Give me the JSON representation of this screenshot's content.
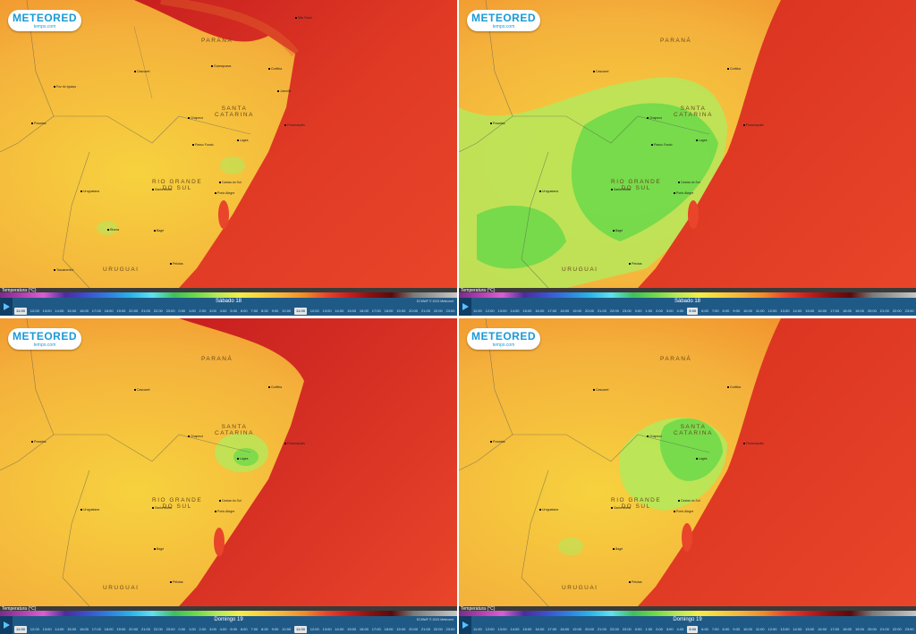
{
  "brand": {
    "name": "METEORED",
    "sub": "tempo.com"
  },
  "colors": {
    "land_base": "#f4b23c",
    "land_warm": "#f08a28",
    "land_cool": "#f7d23e",
    "green_cool": "#6fd94a",
    "green_light": "#b6e85a",
    "sea_base": "#e8452a",
    "sea_dark": "#c81f1f",
    "timebar": "#1f5a87"
  },
  "legend": {
    "label": "Temperatura (°C)",
    "scale": [
      "#7a2b8c",
      "#b23fb0",
      "#d95fd0",
      "#4b2c9e",
      "#3c4fd0",
      "#2f7fe0",
      "#2ab3e8",
      "#5fe0f0",
      "#3fbf5a",
      "#6fd94a",
      "#b6e85a",
      "#f2ee4a",
      "#f7d23e",
      "#f4b23c",
      "#f08a28",
      "#e8452a",
      "#c81f1f",
      "#8a1010",
      "#5a0a0a",
      "#7a7a7a",
      "#a0a0a0",
      "#c8c8c8"
    ]
  },
  "attribution": "ECMWF © 2023 Meteored",
  "hours": [
    "11:00",
    "12:00",
    "13:00",
    "14:00",
    "15:00",
    "16:00",
    "17:00",
    "18:00",
    "19:00",
    "20:00",
    "21:00",
    "22:00",
    "23:00",
    "0:00",
    "1:00",
    "2:00",
    "3:00",
    "4:00",
    "5:00",
    "6:00",
    "7:00",
    "8:00",
    "9:00",
    "10:00",
    "11:00",
    "12:00",
    "13:00",
    "14:00",
    "15:00",
    "16:00",
    "17:00",
    "18:00",
    "19:00",
    "20:00",
    "21:00",
    "22:00",
    "23:00"
  ],
  "regions": {
    "parana": "PARANÁ",
    "sc_line1": "SANTA",
    "sc_line2": "CATARINA",
    "rs_line1": "RIO GRANDE",
    "rs_line2": "DO SUL",
    "uruguai": "URUGUAI"
  },
  "cities": {
    "curitiba": "Curitiba",
    "joinville": "Joinville",
    "florianopolis": "Florianópolis",
    "lages": "Lages",
    "chapeco": "Chapecó",
    "passo_fundo": "Passo Fundo",
    "caxias": "Caxias do Sul",
    "porto_alegre": "Porto Alegre",
    "santa_maria": "Santa Maria",
    "uruguaiana": "Uruguaiana",
    "pelotas": "Pelotas",
    "rio_grande": "Rio Grande",
    "bage": "Bagé",
    "cascavel": "Cascavel",
    "foz": "Foz do Iguaçu",
    "guarapuava": "Guarapuava",
    "ponta_grossa": "Ponta Grossa",
    "posadas": "Posadas",
    "rivera": "Rivera",
    "tacuarembo": "Tacuarembó",
    "melo": "Melo",
    "sao_paulo": "São Paulo"
  },
  "panels": [
    {
      "day": "Sábado 18",
      "active_hour": "11:00"
    },
    {
      "day": "Sábado 18",
      "active_hour": "5:00"
    },
    {
      "day": "Domingo 19",
      "active_hour": "11:00"
    },
    {
      "day": "Domingo 19",
      "active_hour": "5:00"
    }
  ]
}
